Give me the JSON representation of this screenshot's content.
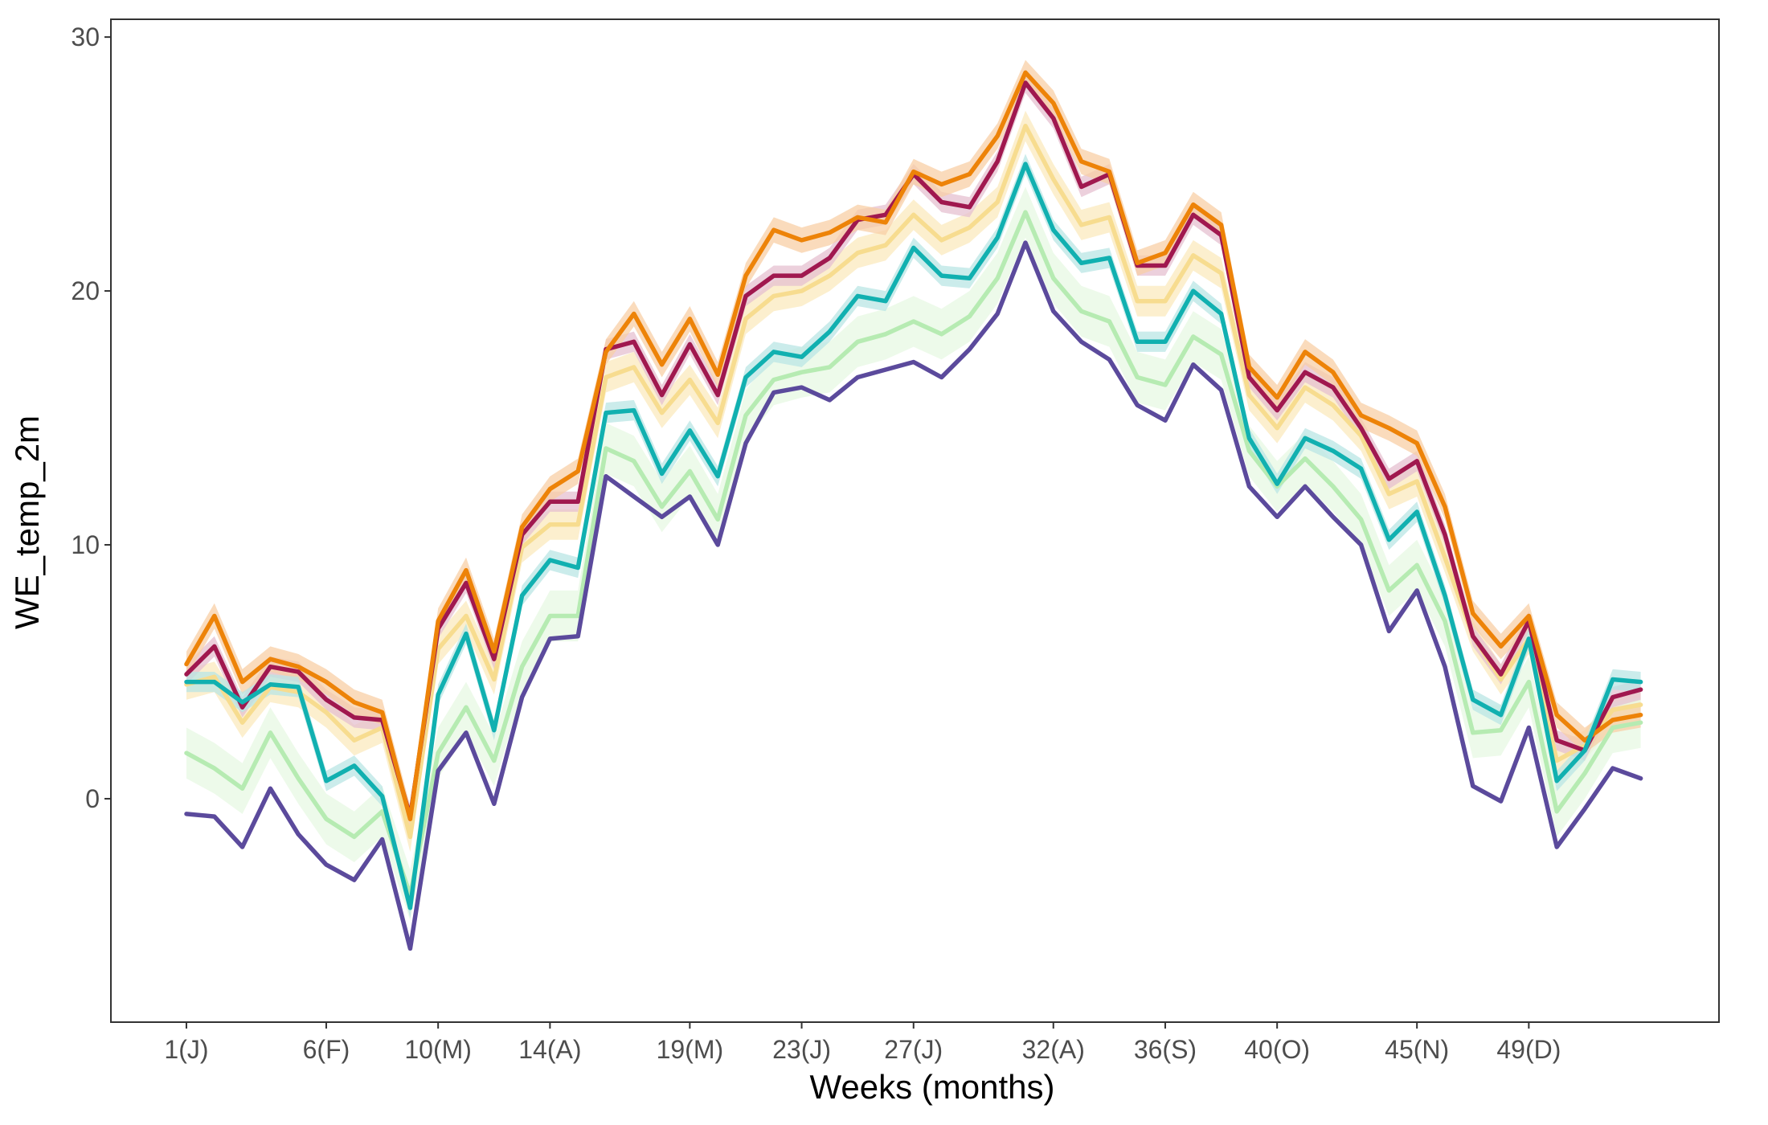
{
  "chart_data": {
    "type": "line",
    "title": "",
    "xlabel": "Weeks (months)",
    "ylabel": "WE_temp_2m",
    "xlim": [
      -1.7,
      55.8
    ],
    "ylim": [
      -8.8,
      30.7
    ],
    "x_ticks": [
      {
        "value": 1,
        "label": "1(J)"
      },
      {
        "value": 6,
        "label": "6(F)"
      },
      {
        "value": 10,
        "label": "10(M)"
      },
      {
        "value": 14,
        "label": "14(A)"
      },
      {
        "value": 19,
        "label": "19(M)"
      },
      {
        "value": 23,
        "label": "23(J)"
      },
      {
        "value": 27,
        "label": "27(J)"
      },
      {
        "value": 32,
        "label": "32(A)"
      },
      {
        "value": 36,
        "label": "36(S)"
      },
      {
        "value": 40,
        "label": "40(O)"
      },
      {
        "value": 45,
        "label": "45(N)"
      },
      {
        "value": 49,
        "label": "49(D)"
      }
    ],
    "y_ticks": [
      {
        "value": 0,
        "label": "0"
      },
      {
        "value": 10,
        "label": "10"
      },
      {
        "value": 20,
        "label": "20"
      },
      {
        "value": 30,
        "label": "30"
      }
    ],
    "grid": false,
    "legend": "none",
    "x": [
      1,
      2,
      3,
      4,
      5,
      6,
      7,
      8,
      9,
      10,
      11,
      12,
      13,
      14,
      15,
      16,
      17,
      18,
      19,
      20,
      21,
      22,
      23,
      24,
      25,
      26,
      27,
      28,
      29,
      30,
      31,
      32,
      33,
      34,
      35,
      36,
      37,
      38,
      39,
      40,
      41,
      42,
      43,
      44,
      45,
      46,
      47,
      48,
      49,
      50,
      51,
      52,
      53
    ],
    "series": [
      {
        "color": "#f7dc8f",
        "band_color": "#fbe9bd",
        "band_width": 0.6,
        "values": [
          4.5,
          4.8,
          3.0,
          4.4,
          4.2,
          3.4,
          2.3,
          2.8,
          -1.5,
          5.9,
          7.2,
          4.7,
          9.9,
          10.8,
          10.8,
          16.6,
          17.0,
          15.2,
          16.5,
          14.8,
          18.9,
          19.8,
          20.0,
          20.6,
          21.5,
          21.8,
          23.0,
          22.0,
          22.5,
          23.5,
          26.5,
          24.4,
          22.6,
          22.9,
          19.6,
          19.6,
          21.4,
          20.7,
          15.9,
          14.6,
          16.2,
          15.5,
          14.3,
          12.0,
          12.5,
          9.5,
          6.4,
          4.7,
          6.3,
          1.5,
          2.1,
          3.5,
          3.7
        ]
      },
      {
        "color": "#b6ebb2",
        "band_color": "#e7f8e3",
        "band_width": 1.0,
        "values": [
          1.8,
          1.2,
          0.4,
          2.6,
          0.8,
          -0.8,
          -1.5,
          -0.5,
          -3.8,
          1.8,
          3.6,
          1.5,
          5.2,
          7.2,
          7.2,
          13.8,
          13.3,
          11.5,
          12.9,
          11.0,
          15.1,
          16.5,
          16.8,
          17.0,
          18.0,
          18.3,
          18.8,
          18.3,
          19.0,
          20.5,
          23.1,
          20.5,
          19.2,
          18.8,
          16.6,
          16.3,
          18.2,
          17.5,
          13.7,
          12.3,
          13.4,
          12.3,
          11.0,
          8.2,
          9.2,
          7.0,
          2.6,
          2.7,
          4.6,
          -0.5,
          1.0,
          2.8,
          3.0
        ]
      },
      {
        "color": "#a0184f",
        "band_color": "#e6c0d0",
        "band_width": 0.4,
        "values": [
          4.9,
          6.0,
          3.6,
          5.2,
          5.0,
          3.9,
          3.2,
          3.1,
          -0.7,
          6.7,
          8.5,
          5.5,
          10.4,
          11.7,
          11.7,
          17.7,
          18.0,
          15.9,
          17.9,
          15.9,
          19.8,
          20.6,
          20.6,
          21.3,
          22.8,
          23.0,
          24.6,
          23.5,
          23.3,
          25.1,
          28.2,
          26.8,
          24.1,
          24.6,
          21.0,
          21.0,
          23.0,
          22.2,
          16.6,
          15.3,
          16.8,
          16.2,
          14.6,
          12.6,
          13.3,
          10.4,
          6.4,
          4.9,
          7.0,
          2.3,
          1.9,
          4.0,
          4.3
        ]
      },
      {
        "color": "#ed8308",
        "band_color": "#f8cfa6",
        "band_width": 0.5,
        "values": [
          5.3,
          7.2,
          4.6,
          5.5,
          5.2,
          4.6,
          3.8,
          3.4,
          -0.8,
          7.0,
          9.0,
          5.8,
          10.7,
          12.2,
          12.9,
          17.6,
          19.1,
          17.1,
          18.9,
          16.7,
          20.6,
          22.4,
          22.0,
          22.3,
          22.9,
          22.7,
          24.7,
          24.2,
          24.6,
          26.1,
          28.6,
          27.4,
          25.1,
          24.7,
          21.1,
          21.5,
          23.4,
          22.6,
          17.0,
          15.8,
          17.6,
          16.8,
          15.1,
          14.6,
          14.0,
          11.5,
          7.3,
          6.0,
          7.2,
          3.3,
          2.3,
          3.1,
          3.3
        ]
      },
      {
        "color": "#11b0b0",
        "band_color": "#b9e6e4",
        "band_width": 0.4,
        "values": [
          4.6,
          4.6,
          3.8,
          4.5,
          4.4,
          0.7,
          1.3,
          0.1,
          -4.3,
          4.1,
          6.5,
          2.7,
          8.0,
          9.4,
          9.1,
          15.2,
          15.3,
          12.8,
          14.5,
          12.7,
          16.6,
          17.6,
          17.4,
          18.4,
          19.8,
          19.6,
          21.7,
          20.6,
          20.5,
          22.1,
          25.0,
          22.4,
          21.1,
          21.3,
          18.0,
          18.0,
          20.0,
          19.1,
          14.2,
          12.4,
          14.2,
          13.7,
          13.0,
          10.2,
          11.3,
          8.0,
          3.9,
          3.3,
          6.3,
          0.7,
          1.9,
          4.7,
          4.6
        ]
      },
      {
        "color": "#5b4a9c",
        "band_color": "#ffffff",
        "band_width": 0,
        "values": [
          -0.6,
          -0.7,
          -1.9,
          0.4,
          -1.4,
          -2.6,
          -3.2,
          -1.6,
          -5.9,
          1.1,
          2.6,
          -0.2,
          4.0,
          6.3,
          6.4,
          12.7,
          11.9,
          11.1,
          11.9,
          10.0,
          14.0,
          16.0,
          16.2,
          15.7,
          16.6,
          16.9,
          17.2,
          16.6,
          17.7,
          19.1,
          21.9,
          19.2,
          18.0,
          17.3,
          15.5,
          14.9,
          17.1,
          16.1,
          12.3,
          11.1,
          12.3,
          11.1,
          10.0,
          6.6,
          8.2,
          5.2,
          0.5,
          -0.1,
          2.8,
          -1.9,
          -0.4,
          1.2,
          0.8
        ]
      }
    ]
  }
}
